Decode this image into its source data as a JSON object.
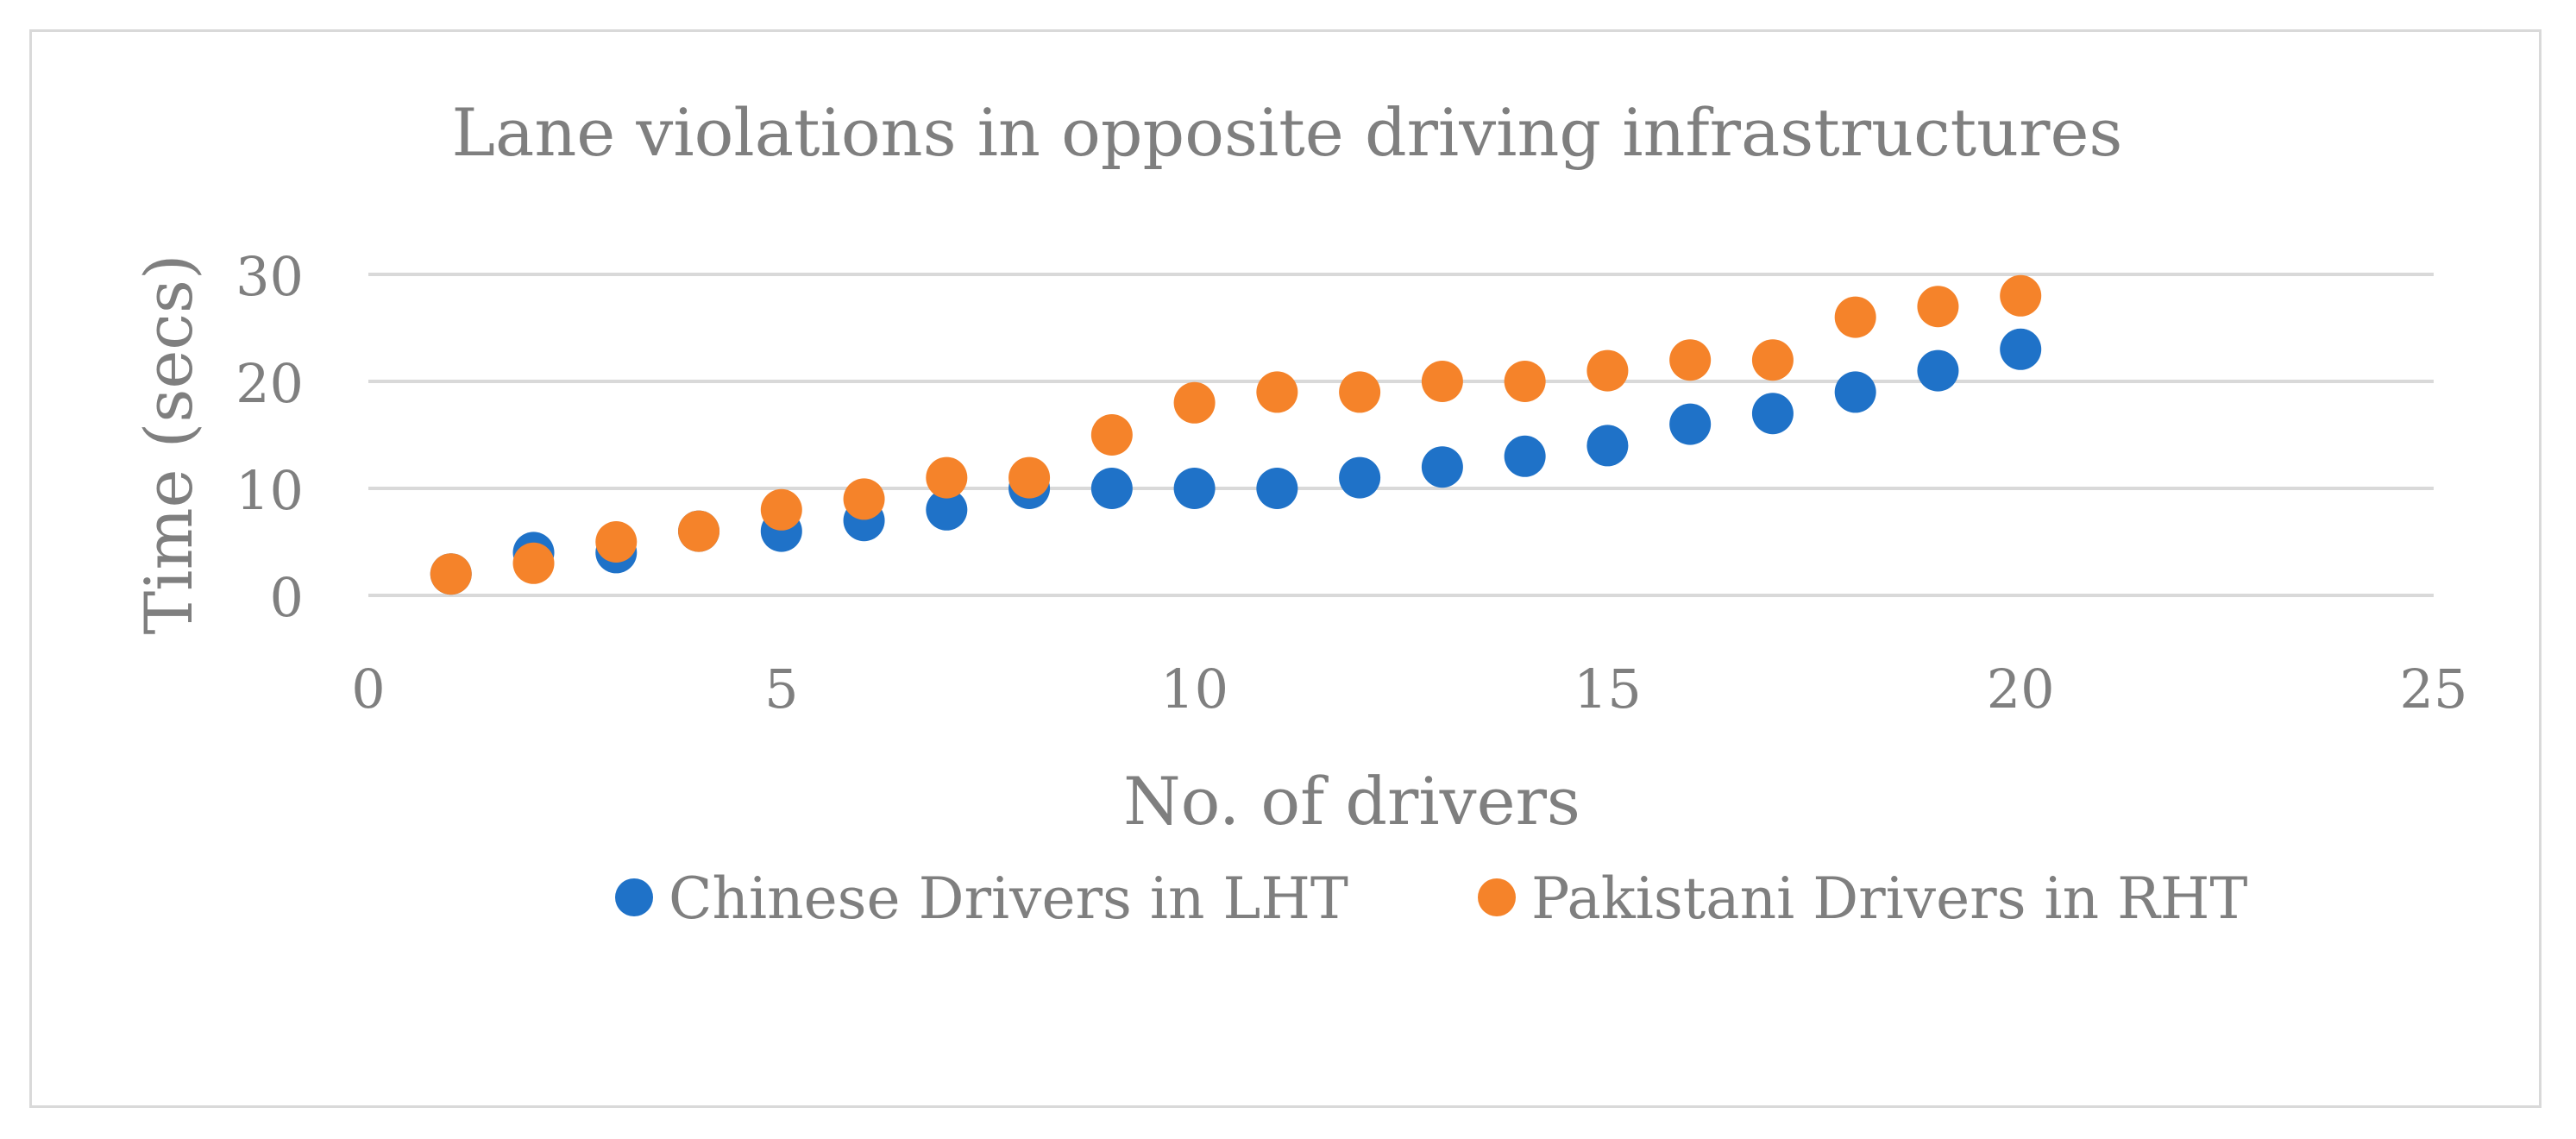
{
  "chart_data": {
    "type": "scatter",
    "title": "Lane violations in opposite driving infrastructures",
    "xlabel": "No. of drivers",
    "ylabel": "Time (secs)",
    "xlim": [
      0,
      25
    ],
    "ylim": [
      0,
      30
    ],
    "xticks": [
      0,
      5,
      10,
      15,
      20,
      25
    ],
    "yticks": [
      0,
      10,
      20,
      30
    ],
    "grid": "horizontal",
    "legend_position": "bottom",
    "series": [
      {
        "name": "Chinese Drivers in LHT",
        "color": "#1f72c8",
        "x": [
          1,
          2,
          3,
          4,
          5,
          6,
          7,
          8,
          9,
          10,
          11,
          12,
          13,
          14,
          15,
          16,
          17,
          18,
          19,
          20
        ],
        "y": [
          2,
          4,
          4,
          6,
          6,
          7,
          8,
          10,
          10,
          10,
          10,
          11,
          12,
          13,
          14,
          16,
          17,
          19,
          21,
          23
        ]
      },
      {
        "name": "Pakistani Drivers in RHT",
        "color": "#f5832a",
        "x": [
          1,
          2,
          3,
          4,
          5,
          6,
          7,
          8,
          9,
          10,
          11,
          12,
          13,
          14,
          15,
          16,
          17,
          18,
          19,
          20
        ],
        "y": [
          2,
          3,
          5,
          6,
          8,
          9,
          11,
          11,
          15,
          18,
          19,
          19,
          20,
          20,
          21,
          22,
          22,
          26,
          27,
          28
        ]
      }
    ]
  }
}
